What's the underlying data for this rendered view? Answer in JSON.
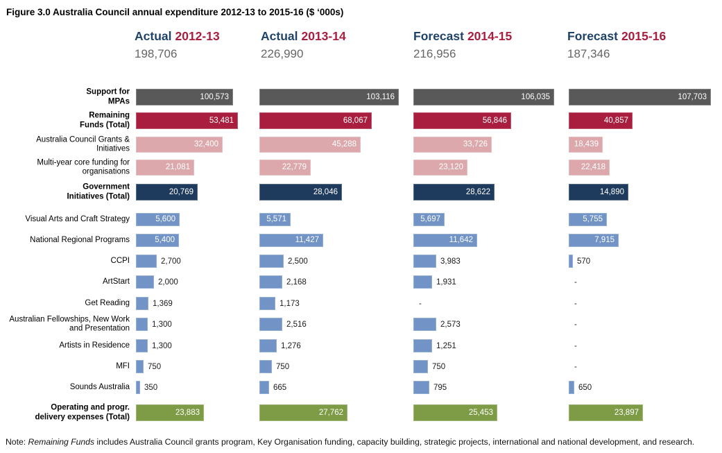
{
  "figure": {
    "title": "Figure 3.0 Australia Council annual expenditure 2012-13 to 2015-16 ($ ‘000s)",
    "note_prefix": "Note: ",
    "note_italic": "Remaining Funds",
    "note_rest": " includes Australia Council grants program, Key Organisation funding, capacity building, strategic projects, international and national development, and research."
  },
  "colors": {
    "gray": "#595959",
    "crimson": "#A91E3E",
    "pink": "#DCA8AC",
    "navy": "#1E3A5C",
    "blue": "#7193C6",
    "green": "#7D9C45",
    "header_blue": "#1F4368",
    "header_red": "#A91E3E",
    "total_gray": "#666666"
  },
  "chart_data": {
    "type": "bar",
    "orientation": "horizontal",
    "title": "Figure 3.0 Australia Council annual expenditure 2012-13 to 2015-16 ($ ‘000s)",
    "unit": "$ '000s",
    "grid": false,
    "legend": null,
    "null_display": "-",
    "columns": [
      {
        "prefix": "Actual",
        "year": "2012-13",
        "total": 198706,
        "total_display": "198,706"
      },
      {
        "prefix": "Actual",
        "year": "2013-14",
        "total": 226990,
        "total_display": "226,990"
      },
      {
        "prefix": "Forecast",
        "year": "2014-15",
        "total": 216956,
        "total_display": "216,956"
      },
      {
        "prefix": "Forecast",
        "year": "2015-16",
        "total": 187346,
        "total_display": "187,346"
      }
    ],
    "rows": [
      {
        "label": "Support for\nMPAs",
        "bold": true,
        "color": "gray",
        "values": [
          100573,
          103116,
          106035,
          107703
        ],
        "width_pct": [
          93,
          98,
          99,
          100
        ],
        "inside": true
      },
      {
        "label": "Remaining\nFunds (Total)",
        "bold": true,
        "color": "crimson",
        "values": [
          53481,
          68067,
          56846,
          40857
        ],
        "width_pct": [
          98,
          79,
          69,
          45
        ],
        "inside": true
      },
      {
        "label": "Australia Council Grants &\nInitiatives",
        "bold": false,
        "color": "pink",
        "values": [
          32400,
          45288,
          33726,
          18439
        ],
        "width_pct": [
          83,
          71,
          55,
          24
        ],
        "inside": true
      },
      {
        "label": "Multi-year core funding for\norganisations",
        "bold": false,
        "color": "pink",
        "values": [
          21081,
          22779,
          23120,
          22418
        ],
        "width_pct": [
          56,
          36,
          38,
          29
        ],
        "inside": true
      },
      {
        "label": "Government\nInitiatives (Total)",
        "bold": true,
        "color": "navy",
        "values": [
          20769,
          28046,
          28622,
          14890
        ],
        "width_pct": [
          59,
          58,
          57,
          42
        ],
        "inside": true
      },
      {
        "label": "Visual Arts and Craft Strategy",
        "bold": false,
        "color": "blue",
        "values": [
          5600,
          5571,
          5697,
          5755
        ],
        "width_pct": [
          42,
          22,
          22,
          27
        ],
        "inside": true
      },
      {
        "label": "National Regional Programs",
        "bold": false,
        "color": "blue",
        "values": [
          5400,
          11427,
          11642,
          7915
        ],
        "width_pct": [
          41,
          45,
          45,
          35
        ],
        "inside": true
      },
      {
        "label": "CCPI",
        "bold": false,
        "color": "blue",
        "values": [
          2700,
          2500,
          3983,
          570
        ],
        "width_pct": [
          20,
          17,
          16,
          3
        ],
        "inside": false
      },
      {
        "label": "ArtStart",
        "bold": false,
        "color": "blue",
        "values": [
          2000,
          2168,
          1931,
          null
        ],
        "width_pct": [
          17,
          16,
          13,
          null
        ],
        "inside": false
      },
      {
        "label": "Get Reading",
        "bold": false,
        "color": "blue",
        "values": [
          1369,
          1173,
          null,
          null
        ],
        "width_pct": [
          12,
          11,
          null,
          null
        ],
        "inside": false
      },
      {
        "label": "Australian Fellowships, New Work\nand Presentation",
        "bold": false,
        "color": "blue",
        "values": [
          1300,
          2516,
          2573,
          null
        ],
        "width_pct": [
          11,
          16,
          16,
          null
        ],
        "inside": false
      },
      {
        "label": "Artists in Residence",
        "bold": false,
        "color": "blue",
        "values": [
          1300,
          1276,
          1251,
          null
        ],
        "width_pct": [
          11,
          12,
          13,
          null
        ],
        "inside": false
      },
      {
        "label": "MFI",
        "bold": false,
        "color": "blue",
        "values": [
          750,
          750,
          750,
          null
        ],
        "width_pct": [
          7,
          9,
          10,
          null
        ],
        "inside": false
      },
      {
        "label": "Sounds Australia",
        "bold": false,
        "color": "blue",
        "values": [
          350,
          665,
          795,
          650
        ],
        "width_pct": [
          4,
          7,
          11,
          4
        ],
        "inside": false
      },
      {
        "label": "Operating and progr.\ndelivery expenses (Total)",
        "bold": true,
        "color": "green",
        "values": [
          23883,
          27762,
          25453,
          23897
        ],
        "width_pct": [
          65,
          62,
          59,
          52
        ],
        "inside": true
      }
    ]
  }
}
